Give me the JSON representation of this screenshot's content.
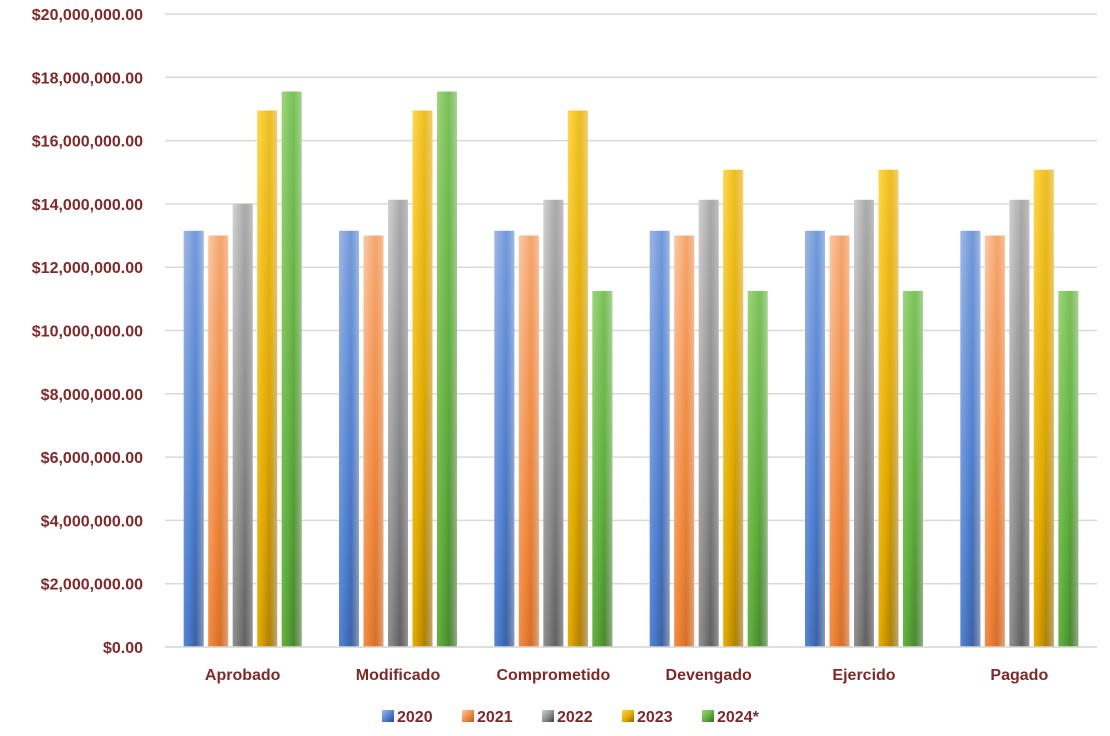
{
  "chart_data": {
    "type": "bar",
    "categories": [
      "Aprobado",
      "Modificado",
      "Comprometido",
      "Devengado",
      "Ejercido",
      "Pagado"
    ],
    "series": [
      {
        "name": "2020",
        "color_light": "#9db8e6",
        "color_mid": "#4f7fd0",
        "color_dark": "#2a4a85",
        "values": [
          13150000,
          13150000,
          13150000,
          13150000,
          13150000,
          13150000
        ]
      },
      {
        "name": "2021",
        "color_light": "#fbc9a6",
        "color_mid": "#f0883e",
        "color_dark": "#c45a12",
        "values": [
          13000000,
          13000000,
          13000000,
          13000000,
          13000000,
          13000000
        ]
      },
      {
        "name": "2022",
        "color_light": "#d2d2d2",
        "color_mid": "#8a8a8a",
        "color_dark": "#3f3f3f",
        "values": [
          14000000,
          14130000,
          14130000,
          14130000,
          14130000,
          14130000
        ]
      },
      {
        "name": "2023",
        "color_light": "#ffd84a",
        "color_mid": "#e0a800",
        "color_dark": "#8a6300",
        "values": [
          16950000,
          16950000,
          16950000,
          15080000,
          15080000,
          15080000
        ]
      },
      {
        "name": "2024*",
        "color_light": "#9cd67a",
        "color_mid": "#5fae3d",
        "color_dark": "#386b22",
        "values": [
          17550000,
          17550000,
          11250000,
          11250000,
          11250000,
          11250000
        ]
      }
    ],
    "ylim": [
      0,
      20000000
    ],
    "yticks": [
      0,
      2000000,
      4000000,
      6000000,
      8000000,
      10000000,
      12000000,
      14000000,
      16000000,
      18000000,
      20000000
    ],
    "ytick_labels": [
      "$0.00",
      "$2,000,000.00",
      "$4,000,000.00",
      "$6,000,000.00",
      "$8,000,000.00",
      "$10,000,000.00",
      "$12,000,000.00",
      "$14,000,000.00",
      "$16,000,000.00",
      "$18,000,000.00",
      "$20,000,000.00"
    ],
    "grid": true,
    "legend": "bottom",
    "title": "",
    "xlabel": "",
    "ylabel": "",
    "gridline_color": "#d9d9d9",
    "text_color": "#7f2a2a"
  }
}
